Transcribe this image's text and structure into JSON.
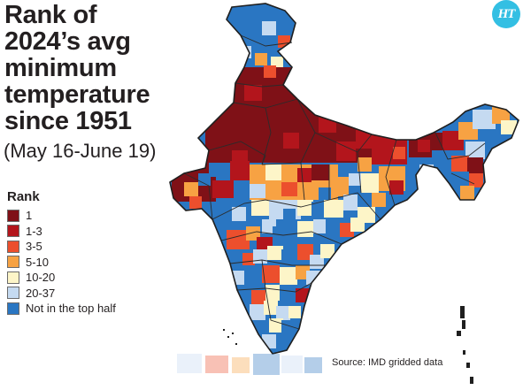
{
  "header": {
    "title_lines": [
      "Rank of",
      "2024’s avg",
      "minimum",
      "temperature",
      "since 1951"
    ],
    "subtitle": "(May 16-June 19)"
  },
  "logo": {
    "text": "HT",
    "color": "#33bfe3"
  },
  "legend": {
    "title": "Rank",
    "items": [
      {
        "label": "1",
        "color": "#7f1117"
      },
      {
        "label": "1-3",
        "color": "#b3151c"
      },
      {
        "label": "3-5",
        "color": "#ec4f2d"
      },
      {
        "label": "5-10",
        "color": "#f7a243"
      },
      {
        "label": "10-20",
        "color": "#fdf5c8"
      },
      {
        "label": "20-37",
        "color": "#c5daf1"
      },
      {
        "label": "Not in the top half",
        "color": "#2a76c2"
      }
    ]
  },
  "source": "Source: IMD gridded data"
}
